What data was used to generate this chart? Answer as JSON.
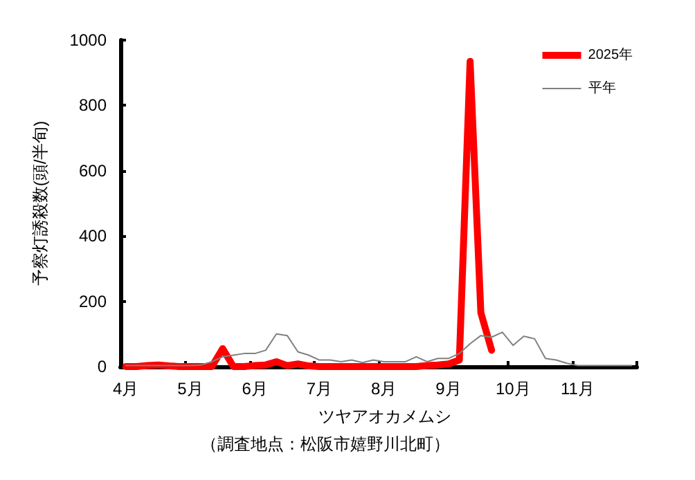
{
  "chart_data": {
    "type": "line",
    "ylabel": "予察灯誘殺数(頭/半旬)",
    "xlabel": "ツヤアオカメムシ",
    "annotations": [
      "（調査地点：松阪市嬉野川北町）"
    ],
    "categories": [
      "4月",
      null,
      null,
      null,
      null,
      null,
      "5月",
      null,
      null,
      null,
      null,
      null,
      "6月",
      null,
      null,
      null,
      null,
      null,
      "7月",
      null,
      null,
      null,
      null,
      null,
      "8月",
      null,
      null,
      null,
      null,
      null,
      "9月",
      null,
      null,
      null,
      null,
      null,
      "10月",
      null,
      null,
      null,
      null,
      null,
      "11月",
      null,
      null,
      null,
      null,
      null
    ],
    "series": [
      {
        "name": "2025年",
        "color": "#ff0000",
        "values": [
          0,
          0,
          3,
          5,
          2,
          0,
          0,
          0,
          0,
          55,
          0,
          0,
          3,
          5,
          15,
          3,
          8,
          2,
          0,
          0,
          0,
          0,
          0,
          0,
          0,
          0,
          0,
          0,
          3,
          5,
          8,
          20,
          935,
          165,
          50,
          null,
          null,
          null,
          null,
          null,
          null,
          null,
          null,
          null,
          null,
          null,
          null,
          null
        ]
      },
      {
        "name": "平年",
        "color": "#808080",
        "values": [
          3,
          3,
          3,
          3,
          3,
          3,
          3,
          5,
          15,
          30,
          35,
          40,
          40,
          50,
          100,
          95,
          45,
          35,
          20,
          20,
          15,
          20,
          12,
          20,
          15,
          15,
          15,
          30,
          15,
          25,
          25,
          40,
          70,
          95,
          90,
          105,
          65,
          93,
          85,
          25,
          20,
          10,
          3,
          3,
          3,
          3,
          3,
          3
        ]
      }
    ],
    "ylim": [
      0,
      1000
    ],
    "yticks": [
      0,
      200,
      400,
      600,
      800,
      1000
    ],
    "grid": false,
    "legend": "top right",
    "marker": "none",
    "line_style": "solid"
  }
}
